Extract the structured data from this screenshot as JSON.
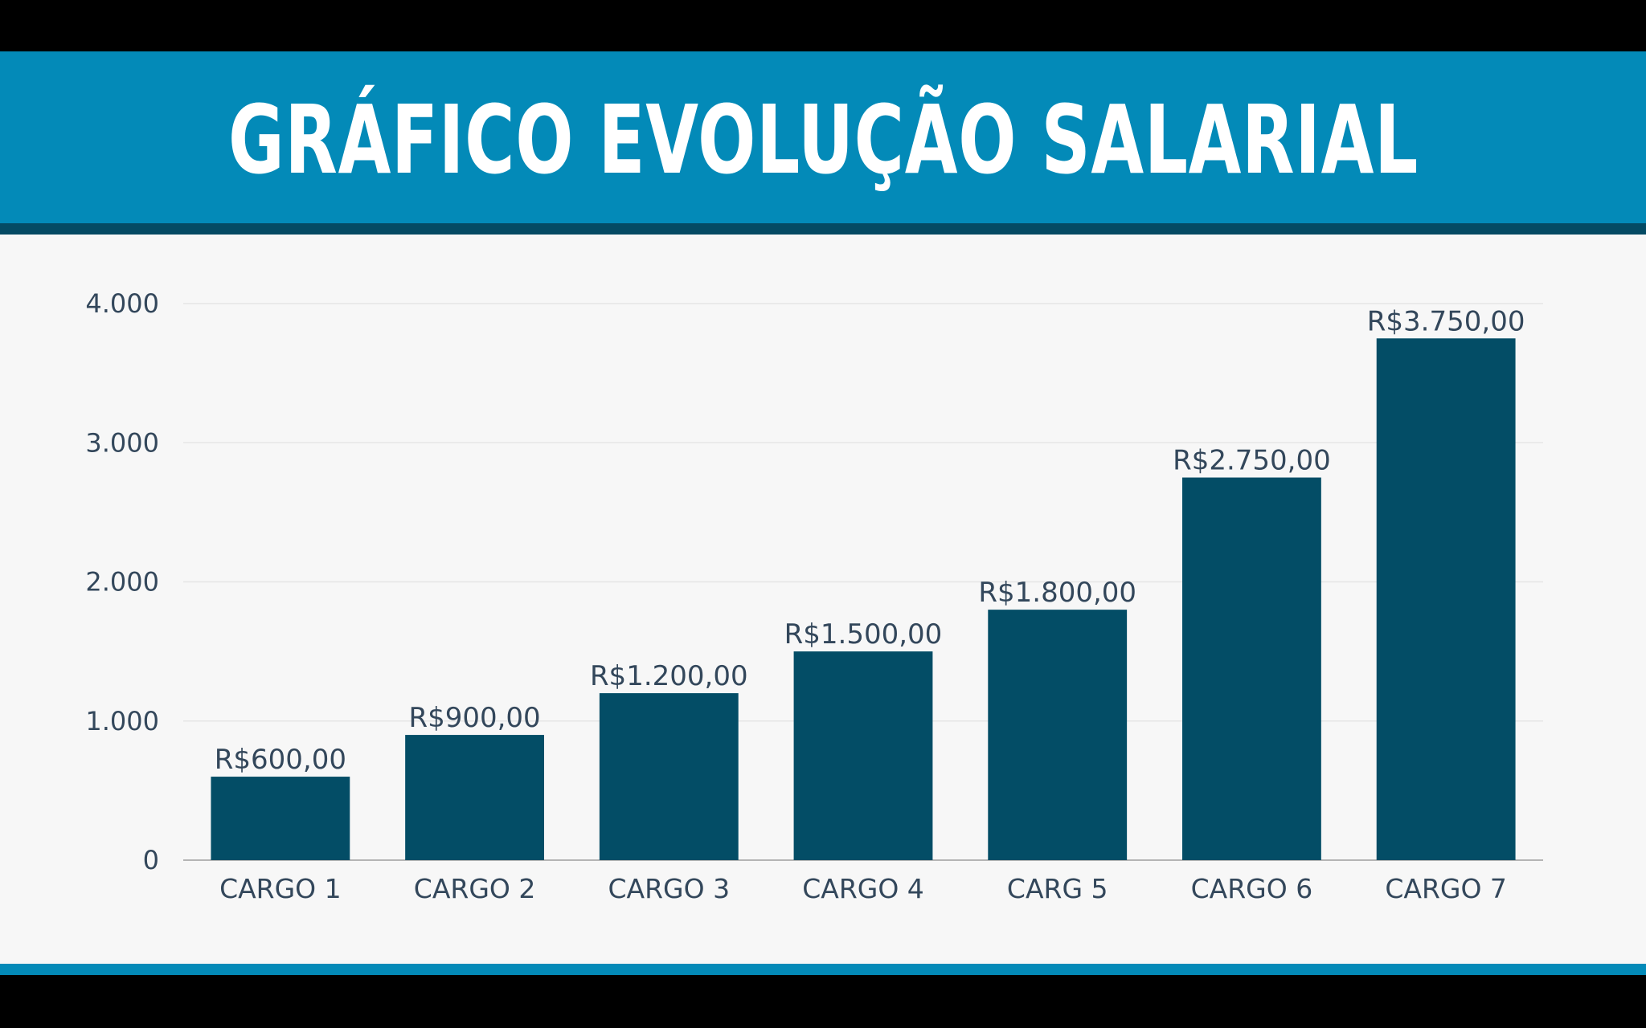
{
  "header": {
    "title": "GRÁFICO EVOLUÇÃO SALARIAL"
  },
  "colors": {
    "header_bg": "#038ab8",
    "header_stripe": "#044a63",
    "panel_bg": "#f7f7f7",
    "bar": "#034d66",
    "text": "#33475b",
    "grid": "#e6e6e6"
  },
  "chart_data": {
    "type": "bar",
    "title": "GRÁFICO EVOLUÇÃO SALARIAL",
    "xlabel": "",
    "ylabel": "",
    "categories": [
      "CARGO 1",
      "CARGO 2",
      "CARGO 3",
      "CARGO 4",
      "CARG 5",
      "CARGO 6",
      "CARGO 7"
    ],
    "values": [
      600,
      900,
      1200,
      1500,
      1800,
      2750,
      3750
    ],
    "data_labels": [
      "R$600,00",
      "R$900,00",
      "R$1.200,00",
      "R$1.500,00",
      "R$1.800,00",
      "R$2.750,00",
      "R$3.750,00"
    ],
    "ylim": [
      0,
      4000
    ],
    "yticks": [
      0,
      1000,
      2000,
      3000,
      4000
    ],
    "ytick_labels": [
      "0",
      "1.000",
      "2.000",
      "3.000",
      "4.000"
    ],
    "grid": true,
    "legend": "none"
  }
}
